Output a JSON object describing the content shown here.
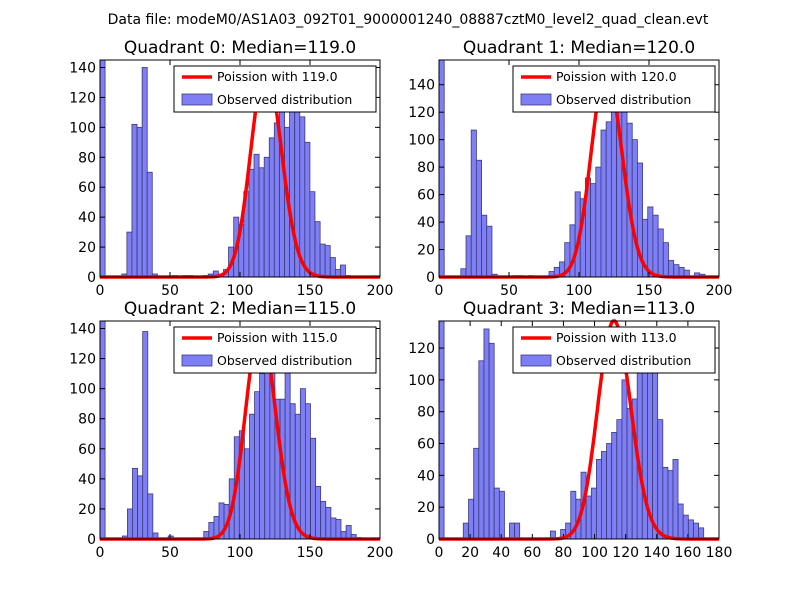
{
  "suptitle": "Data file: modeM0/AS1A03_092T01_9000001240_08887cztM0_level2_quad_clean.evt",
  "colors": {
    "hist_fill": "#7f7ff5",
    "hist_edge": "#3a3a7a",
    "poisson": "#ff0000",
    "axes": "#000000"
  },
  "chart_data": [
    {
      "type": "bar",
      "title": "Quadrant 0: Median=119.0",
      "median": 119.0,
      "xlim": [
        0,
        200
      ],
      "ylim": [
        0,
        145
      ],
      "xticks": [
        0,
        50,
        100,
        150,
        200
      ],
      "yticks": [
        0,
        20,
        40,
        60,
        80,
        100,
        120,
        140
      ],
      "legend": [
        "Poission with 119.0",
        "Observed distribution"
      ],
      "bin_width": 3.63,
      "bin_starts": [
        0,
        15.6,
        19.2,
        22.8,
        26.5,
        30.1,
        33.7,
        37.4,
        51.9,
        59.2,
        62.8,
        73.7,
        77.3,
        80.9,
        84.6,
        88.2,
        91.8,
        95.5,
        99.1,
        102.7,
        106.4,
        110.0,
        113.6,
        117.3,
        120.9,
        124.5,
        128.2,
        131.8,
        135.4,
        139.1,
        142.7,
        146.3,
        149.9,
        153.6,
        157.2,
        160.8,
        164.5,
        168.1,
        171.7,
        175.4
      ],
      "counts": [
        145,
        2,
        30,
        102,
        100,
        140,
        70,
        2,
        1,
        1,
        1,
        1,
        2,
        4,
        2,
        5,
        20,
        40,
        35,
        57,
        72,
        82,
        73,
        80,
        93,
        103,
        112,
        100,
        128,
        133,
        107,
        90,
        57,
        37,
        22,
        21,
        13,
        5,
        8,
        1
      ],
      "poisson": {
        "mu": 119.0,
        "peak": 140
      }
    },
    {
      "type": "bar",
      "title": "Quadrant 1: Median=120.0",
      "median": 120.0,
      "xlim": [
        0,
        200
      ],
      "ylim": [
        0,
        158
      ],
      "xticks": [
        0,
        50,
        100,
        150,
        200
      ],
      "yticks": [
        0,
        20,
        40,
        60,
        80,
        100,
        120,
        140
      ],
      "legend": [
        "Poission with 120.0",
        "Observed distribution"
      ],
      "bin_width": 3.72,
      "bin_starts": [
        0,
        15.6,
        19.3,
        23.0,
        26.7,
        30.4,
        34.1,
        37.9,
        52.7,
        56.4,
        63.8,
        78.6,
        82.3,
        86.1,
        89.8,
        93.5,
        97.2,
        100.9,
        104.6,
        108.3,
        112.0,
        115.7,
        119.4,
        123.1,
        126.9,
        130.6,
        134.3,
        138.0,
        141.7,
        145.4,
        149.1,
        152.8,
        156.5,
        160.2,
        163.9,
        167.7,
        171.4,
        175.1,
        182.5,
        186.2
      ],
      "counts": [
        158,
        6,
        30,
        107,
        85,
        45,
        37,
        2,
        1,
        1,
        1,
        4,
        7,
        11,
        25,
        38,
        62,
        57,
        72,
        68,
        80,
        107,
        113,
        127,
        140,
        120,
        112,
        100,
        83,
        42,
        51,
        45,
        35,
        25,
        12,
        9,
        7,
        5,
        3,
        2
      ],
      "poisson": {
        "mu": 120.0,
        "peak": 150
      }
    },
    {
      "type": "bar",
      "title": "Quadrant 2: Median=115.0",
      "median": 115.0,
      "xlim": [
        0,
        200
      ],
      "ylim": [
        0,
        145
      ],
      "xticks": [
        0,
        50,
        100,
        150,
        200
      ],
      "yticks": [
        0,
        20,
        40,
        60,
        80,
        100,
        120,
        140
      ],
      "legend": [
        "Poission with 115.0",
        "Observed distribution"
      ],
      "bin_width": 3.63,
      "bin_starts": [
        0,
        16.0,
        19.6,
        23.2,
        26.9,
        30.5,
        34.1,
        37.8,
        48.7,
        74.1,
        77.7,
        81.4,
        85.0,
        88.6,
        92.3,
        95.9,
        99.5,
        103.2,
        106.8,
        110.4,
        114.0,
        117.7,
        121.3,
        124.9,
        128.6,
        132.2,
        135.8,
        139.5,
        143.1,
        146.7,
        150.4,
        154.0,
        157.6,
        161.3,
        164.9,
        168.5,
        172.2,
        175.8,
        179.4,
        183.1
      ],
      "counts": [
        145,
        2,
        20,
        47,
        42,
        138,
        30,
        4,
        2,
        5,
        11,
        15,
        24,
        23,
        40,
        68,
        72,
        60,
        83,
        98,
        110,
        111,
        117,
        93,
        93,
        127,
        90,
        83,
        100,
        90,
        67,
        35,
        25,
        21,
        14,
        13,
        5,
        9,
        3,
        1
      ],
      "poisson": {
        "mu": 115.0,
        "peak": 140
      }
    },
    {
      "type": "bar",
      "title": "Quadrant 3: Median=113.0",
      "median": 113.0,
      "xlim": [
        0,
        180
      ],
      "ylim": [
        0,
        137
      ],
      "xticks": [
        0,
        20,
        40,
        60,
        80,
        100,
        120,
        140,
        160,
        180
      ],
      "yticks": [
        0,
        20,
        40,
        60,
        80,
        100,
        120
      ],
      "legend": [
        "Poission with 113.0",
        "Observed distribution"
      ],
      "bin_width": 3.27,
      "bin_starts": [
        0,
        15.6,
        19.0,
        22.3,
        25.6,
        28.9,
        32.2,
        35.5,
        38.8,
        45.3,
        48.6,
        71.6,
        78.2,
        81.4,
        84.7,
        88.0,
        91.3,
        94.6,
        97.9,
        101.2,
        104.4,
        107.7,
        111.0,
        114.3,
        117.6,
        120.9,
        124.2,
        127.4,
        130.7,
        134.0,
        137.3,
        140.6,
        143.9,
        147.2,
        150.4,
        153.7,
        157.0,
        160.3,
        163.6,
        166.9
      ],
      "counts": [
        137,
        10,
        25,
        57,
        112,
        132,
        123,
        32,
        30,
        10,
        10,
        5,
        6,
        10,
        30,
        25,
        42,
        27,
        32,
        50,
        55,
        60,
        67,
        75,
        100,
        82,
        88,
        125,
        105,
        130,
        110,
        75,
        45,
        43,
        50,
        22,
        15,
        12,
        10,
        7
      ],
      "poisson": {
        "mu": 113.0,
        "peak": 137
      }
    }
  ]
}
